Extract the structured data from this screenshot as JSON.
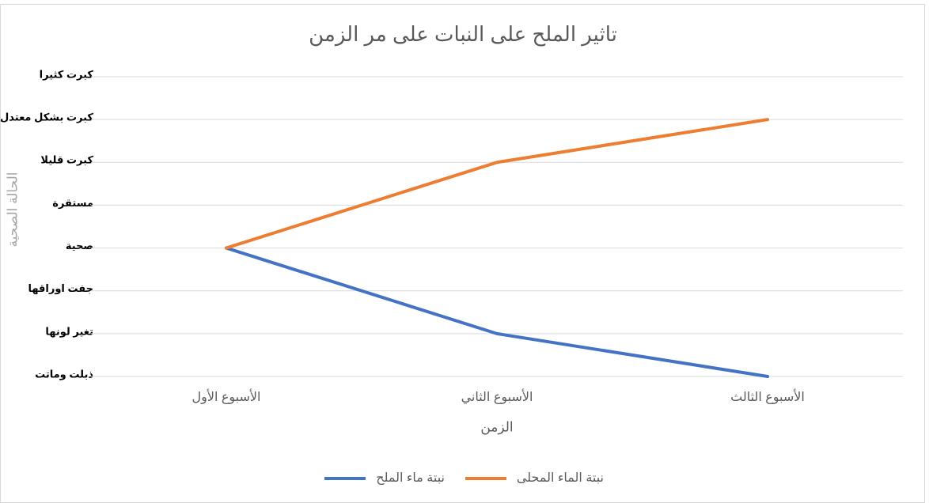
{
  "chart_data": {
    "type": "line",
    "title": "تاثير الملح على النبات على مر الزمن",
    "x_label": "الزمن",
    "y_label": "الحالة الصحية",
    "categories": [
      "الأسبوع الأول",
      "الأسبوع الثاني",
      "الأسبوع الثالث"
    ],
    "series": [
      {
        "name": "نبتة ماء الملح",
        "color": "#4472c4",
        "values": [
          4,
          2,
          1
        ]
      },
      {
        "name": "نبتة الماء المحلى",
        "color": "#ed7d31",
        "values": [
          4,
          6,
          7
        ]
      }
    ],
    "ylim": [
      1,
      8
    ],
    "yticks": [
      {
        "value": 1,
        "label": "ذبلت وماتت"
      },
      {
        "value": 2,
        "label": "تغير لونها"
      },
      {
        "value": 3,
        "label": "جفت اوراقها"
      },
      {
        "value": 4,
        "label": "صحية"
      },
      {
        "value": 5,
        "label": "مستقرة"
      },
      {
        "value": 6,
        "label": "كبرت قليلا"
      },
      {
        "value": 7,
        "label": "كبرت بشكل معتدل"
      },
      {
        "value": 8,
        "label": "كبرت كثيرا"
      }
    ],
    "grid": true,
    "legend": "bottom"
  }
}
